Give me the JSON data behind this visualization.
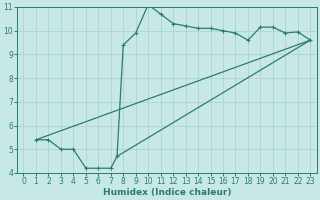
{
  "line1_x": [
    1,
    2,
    3,
    4,
    5,
    6,
    7,
    7.5,
    8,
    9,
    10,
    11,
    12,
    13,
    14,
    15,
    16,
    17,
    18,
    19,
    20,
    21,
    22,
    23
  ],
  "line1_y": [
    5.4,
    5.4,
    5.0,
    5.0,
    4.2,
    4.2,
    4.2,
    4.7,
    9.4,
    9.9,
    11.1,
    10.7,
    10.3,
    10.2,
    10.1,
    10.1,
    10.0,
    9.9,
    9.6,
    10.15,
    10.15,
    9.9,
    9.95,
    9.6
  ],
  "line2_x": [
    1,
    23
  ],
  "line2_y": [
    5.4,
    9.6
  ],
  "line3_x": [
    7.5,
    23
  ],
  "line3_y": [
    4.7,
    9.6
  ],
  "line_color": "#2a7d6e",
  "bg_color": "#c8e8e8",
  "grid_color": "#aad4d4",
  "xlabel": "Humidex (Indice chaleur)",
  "xlim": [
    -0.5,
    23.5
  ],
  "ylim": [
    4,
    11
  ],
  "xticks": [
    0,
    1,
    2,
    3,
    4,
    5,
    6,
    7,
    8,
    9,
    10,
    11,
    12,
    13,
    14,
    15,
    16,
    17,
    18,
    19,
    20,
    21,
    22,
    23
  ],
  "yticks": [
    4,
    5,
    6,
    7,
    8,
    9,
    10,
    11
  ],
  "tick_fontsize": 5.5,
  "xlabel_fontsize": 6.5
}
